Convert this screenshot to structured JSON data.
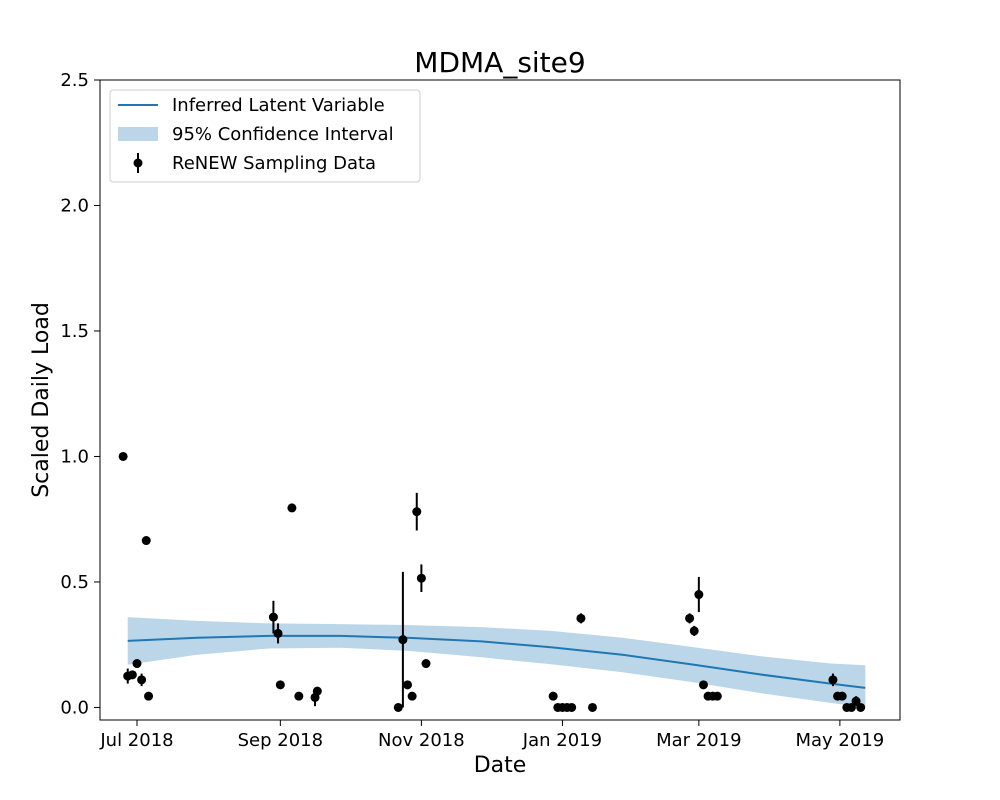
{
  "chart_data": {
    "type": "scatter",
    "title": "MDMA_site9",
    "xlabel": "Date",
    "ylabel": "Scaled Daily Load",
    "xlim": [
      "2018-06-15",
      "2019-05-27"
    ],
    "ylim": [
      -0.05,
      2.5
    ],
    "x_ticks": [
      {
        "date": "2018-07-01",
        "label": "Jul 2018"
      },
      {
        "date": "2018-09-01",
        "label": "Sep 2018"
      },
      {
        "date": "2018-11-01",
        "label": "Nov 2018"
      },
      {
        "date": "2019-01-01",
        "label": "Jan 2019"
      },
      {
        "date": "2019-03-01",
        "label": "Mar 2019"
      },
      {
        "date": "2019-05-01",
        "label": "May 2019"
      }
    ],
    "y_ticks": [
      {
        "value": 0.0,
        "label": "0.0"
      },
      {
        "value": 0.5,
        "label": "0.5"
      },
      {
        "value": 1.0,
        "label": "1.0"
      },
      {
        "value": 1.5,
        "label": "1.5"
      },
      {
        "value": 2.0,
        "label": "2.0"
      },
      {
        "value": 2.5,
        "label": "2.5"
      }
    ],
    "grid": false,
    "legend_position": "top-left",
    "legend": [
      {
        "label": "Inferred Latent Variable",
        "kind": "line"
      },
      {
        "label": "95% Confidence Interval",
        "kind": "band"
      },
      {
        "label": "ReNEW Sampling Data",
        "kind": "errorbar"
      }
    ],
    "colors": {
      "latent_line": "#1f77b4",
      "ci_band": "#1f77b4",
      "points": "#000000"
    },
    "latent": {
      "x": [
        "2018-06-27",
        "2018-07-27",
        "2018-08-27",
        "2018-09-27",
        "2018-10-27",
        "2018-11-27",
        "2018-12-27",
        "2019-01-27",
        "2019-02-27",
        "2019-03-27",
        "2019-04-27",
        "2019-05-12"
      ],
      "y": [
        0.265,
        0.278,
        0.285,
        0.285,
        0.277,
        0.263,
        0.24,
        0.21,
        0.17,
        0.132,
        0.095,
        0.078
      ],
      "lower": [
        0.17,
        0.21,
        0.235,
        0.238,
        0.225,
        0.2,
        0.172,
        0.14,
        0.1,
        0.058,
        0.018,
        0.0
      ],
      "upper": [
        0.36,
        0.345,
        0.335,
        0.332,
        0.328,
        0.32,
        0.305,
        0.278,
        0.24,
        0.205,
        0.175,
        0.168
      ]
    },
    "observations": [
      {
        "x": "2018-06-25",
        "y": 1.0
      },
      {
        "x": "2018-06-27",
        "y": 0.125,
        "err": 0.03
      },
      {
        "x": "2018-06-29",
        "y": 0.13
      },
      {
        "x": "2018-07-01",
        "y": 0.175
      },
      {
        "x": "2018-07-03",
        "y": 0.11,
        "err": 0.025
      },
      {
        "x": "2018-07-05",
        "y": 0.665
      },
      {
        "x": "2018-07-06",
        "y": 0.045
      },
      {
        "x": "2018-08-29",
        "y": 0.36,
        "err": 0.065
      },
      {
        "x": "2018-08-31",
        "y": 0.295,
        "err": 0.04
      },
      {
        "x": "2018-09-01",
        "y": 0.09
      },
      {
        "x": "2018-09-06",
        "y": 0.795
      },
      {
        "x": "2018-09-09",
        "y": 0.045
      },
      {
        "x": "2018-09-16",
        "y": 0.04,
        "err": 0.035
      },
      {
        "x": "2018-09-17",
        "y": 0.065
      },
      {
        "x": "2018-10-22",
        "y": 0.0
      },
      {
        "x": "2018-10-24",
        "y": 0.27,
        "err": 0.27
      },
      {
        "x": "2018-10-26",
        "y": 0.09
      },
      {
        "x": "2018-10-28",
        "y": 0.045
      },
      {
        "x": "2018-10-30",
        "y": 0.78,
        "err": 0.075
      },
      {
        "x": "2018-11-01",
        "y": 0.515,
        "err": 0.055
      },
      {
        "x": "2018-11-03",
        "y": 0.175
      },
      {
        "x": "2018-12-28",
        "y": 0.045
      },
      {
        "x": "2018-12-30",
        "y": 0.0
      },
      {
        "x": "2019-01-01",
        "y": 0.0
      },
      {
        "x": "2019-01-03",
        "y": 0.0
      },
      {
        "x": "2019-01-05",
        "y": 0.0
      },
      {
        "x": "2019-01-09",
        "y": 0.355,
        "err": 0.02
      },
      {
        "x": "2019-01-14",
        "y": 0.0
      },
      {
        "x": "2019-02-25",
        "y": 0.355,
        "err": 0.02
      },
      {
        "x": "2019-02-27",
        "y": 0.305,
        "err": 0.02
      },
      {
        "x": "2019-03-01",
        "y": 0.45,
        "err": 0.07
      },
      {
        "x": "2019-03-03",
        "y": 0.09
      },
      {
        "x": "2019-03-05",
        "y": 0.045
      },
      {
        "x": "2019-03-07",
        "y": 0.045
      },
      {
        "x": "2019-03-09",
        "y": 0.045
      },
      {
        "x": "2019-04-28",
        "y": 0.11,
        "err": 0.025
      },
      {
        "x": "2019-04-30",
        "y": 0.045
      },
      {
        "x": "2019-05-02",
        "y": 0.045
      },
      {
        "x": "2019-05-04",
        "y": 0.0
      },
      {
        "x": "2019-05-06",
        "y": 0.0
      },
      {
        "x": "2019-05-08",
        "y": 0.025,
        "err": 0.02
      },
      {
        "x": "2019-05-10",
        "y": 0.0
      }
    ]
  }
}
